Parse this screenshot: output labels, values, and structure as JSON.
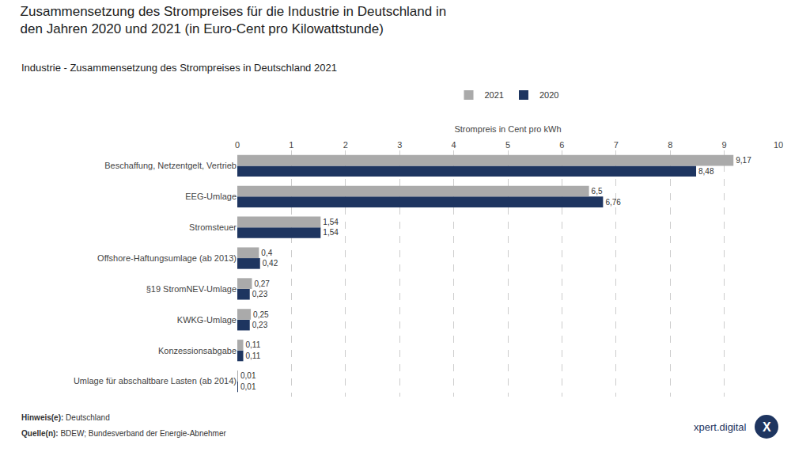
{
  "chart_data": {
    "type": "bar",
    "orientation": "horizontal",
    "title": "Zusammensetzung des Strompreises für die Industrie in Deutschland in\nden Jahren 2020 und 2021 (in Euro-Cent pro Kilowattstunde)",
    "subtitle": "Industrie - Zusammensetzung des Strompreises in Deutschland 2021",
    "x_label": "Strompreis in Cent pro kWh",
    "categories": [
      "Umlage für abschaltbare Lasten (ab 2014)",
      "Konzessionsabgabe",
      "KWKG-Umlage",
      "§19 StromNEV-Umlage",
      "Offshore-Haftungsumlage (ab 2013)",
      "Stromsteuer",
      "EEG-Umlage",
      "Beschaffung, Netzentgelt, Vertrieb"
    ],
    "series": [
      {
        "name": "2021",
        "color": "#aaaaaa",
        "values": [
          0.01,
          0.11,
          0.25,
          0.27,
          0.4,
          1.54,
          6.5,
          9.17
        ],
        "value_labels": [
          "0,01",
          "0,11",
          "0,25",
          "0,27",
          "0,4",
          "1,54",
          "6,5",
          "9,17"
        ]
      },
      {
        "name": "2020",
        "color": "#1e3560",
        "values": [
          0.01,
          0.11,
          0.23,
          0.23,
          0.42,
          1.54,
          6.76,
          8.48
        ],
        "value_labels": [
          "0,01",
          "0,11",
          "0,23",
          "0,23",
          "0,42",
          "1,54",
          "6,76",
          "8,48"
        ]
      }
    ],
    "xlim": [
      0,
      10
    ],
    "xticks": [
      0,
      1,
      2,
      3,
      4,
      5,
      6,
      7,
      8,
      9,
      10
    ],
    "grid": true,
    "data_labels": true,
    "legend": "top",
    "annotations": [
      {
        "label": "Hinweis(e):",
        "text": "Deutschland"
      },
      {
        "label": "Quelle(n):",
        "text": "BDEW; Bundesverband der Energie-Abnehmer"
      },
      {
        "text": "xpert.digital",
        "color": "#1e3560"
      },
      {
        "text": "X",
        "color": "#1e3560",
        "marker": "circle"
      }
    ]
  }
}
